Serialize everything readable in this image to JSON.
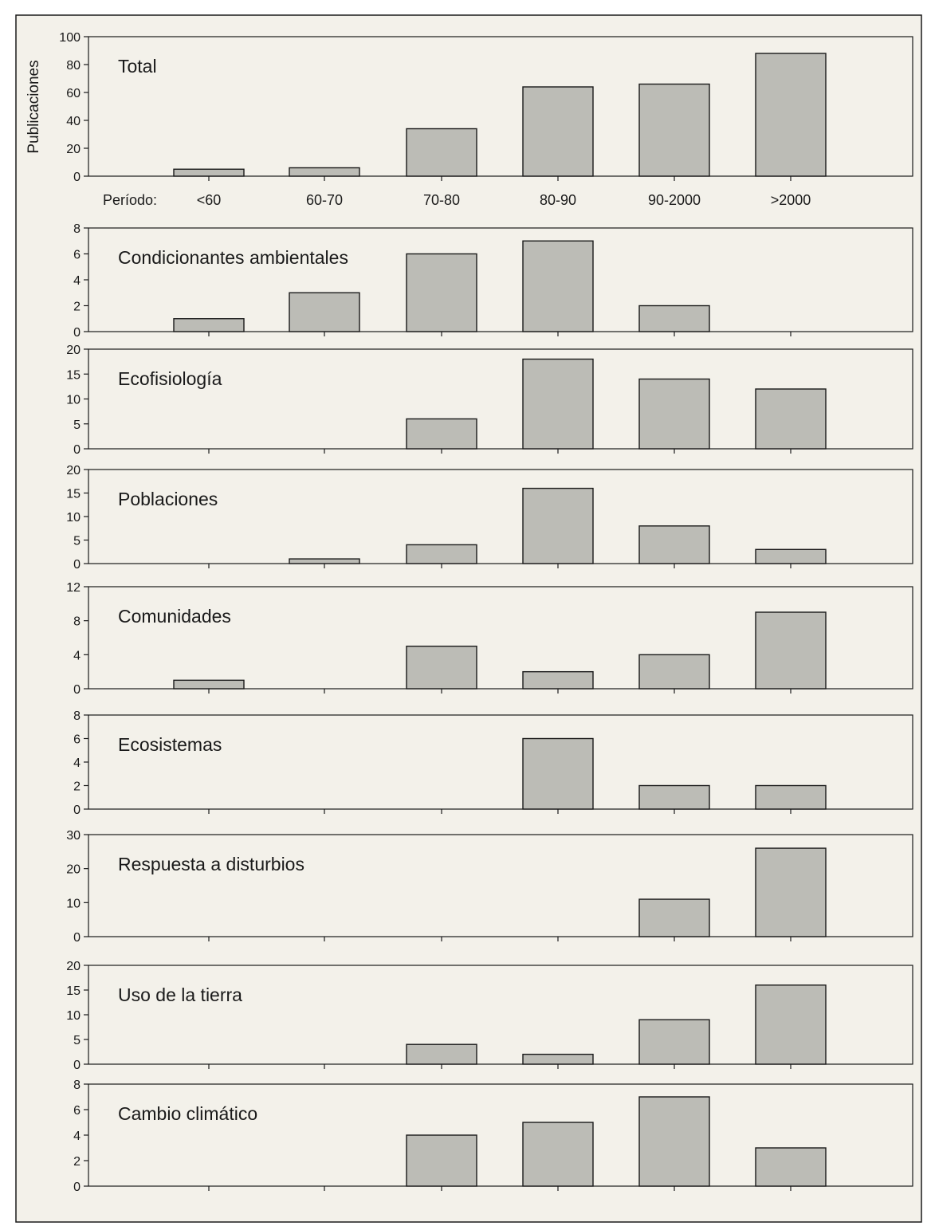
{
  "ylabel": "Publicaciones",
  "period_prefix": "Período:",
  "colors": {
    "background": "#f3f1ea",
    "bar_fill": "#bcbcb6",
    "stroke": "#1a1a1a"
  },
  "chart_data": [
    {
      "type": "bar",
      "title": "Total",
      "categories": [
        "<60",
        "60-70",
        "70-80",
        "80-90",
        "90-2000",
        ">2000"
      ],
      "values": [
        5,
        6,
        34,
        64,
        66,
        88
      ],
      "ylim": [
        0,
        100
      ],
      "yticks": [
        0,
        20,
        40,
        60,
        80,
        100
      ]
    },
    {
      "type": "bar",
      "title": "Condicionantes ambientales",
      "categories": [
        "<60",
        "60-70",
        "70-80",
        "80-90",
        "90-2000",
        ">2000"
      ],
      "values": [
        1,
        3,
        6,
        7,
        2,
        0
      ],
      "ylim": [
        0,
        8
      ],
      "yticks": [
        0,
        2,
        4,
        6,
        8
      ]
    },
    {
      "type": "bar",
      "title": "Ecofisiología",
      "categories": [
        "<60",
        "60-70",
        "70-80",
        "80-90",
        "90-2000",
        ">2000"
      ],
      "values": [
        0,
        0,
        6,
        18,
        14,
        12
      ],
      "ylim": [
        0,
        20
      ],
      "yticks": [
        0,
        5,
        10,
        15,
        20
      ]
    },
    {
      "type": "bar",
      "title": "Poblaciones",
      "categories": [
        "<60",
        "60-70",
        "70-80",
        "80-90",
        "90-2000",
        ">2000"
      ],
      "values": [
        0,
        1,
        4,
        16,
        8,
        3
      ],
      "ylim": [
        0,
        20
      ],
      "yticks": [
        0,
        5,
        10,
        15,
        20
      ]
    },
    {
      "type": "bar",
      "title": "Comunidades",
      "categories": [
        "<60",
        "60-70",
        "70-80",
        "80-90",
        "90-2000",
        ">2000"
      ],
      "values": [
        1,
        0,
        5,
        2,
        4,
        9
      ],
      "ylim": [
        0,
        12
      ],
      "yticks": [
        0,
        4,
        8,
        12
      ]
    },
    {
      "type": "bar",
      "title": "Ecosistemas",
      "categories": [
        "<60",
        "60-70",
        "70-80",
        "80-90",
        "90-2000",
        ">2000"
      ],
      "values": [
        0,
        0,
        0,
        6,
        2,
        2
      ],
      "ylim": [
        0,
        8
      ],
      "yticks": [
        0,
        2,
        4,
        6,
        8
      ]
    },
    {
      "type": "bar",
      "title": "Respuesta a disturbios",
      "categories": [
        "<60",
        "60-70",
        "70-80",
        "80-90",
        "90-2000",
        ">2000"
      ],
      "values": [
        0,
        0,
        0,
        0,
        11,
        26
      ],
      "ylim": [
        0,
        30
      ],
      "yticks": [
        0,
        10,
        20,
        30
      ]
    },
    {
      "type": "bar",
      "title": "Uso de la tierra",
      "categories": [
        "<60",
        "60-70",
        "70-80",
        "80-90",
        "90-2000",
        ">2000"
      ],
      "values": [
        0,
        0,
        4,
        2,
        9,
        16
      ],
      "ylim": [
        0,
        20
      ],
      "yticks": [
        0,
        5,
        10,
        15,
        20
      ]
    },
    {
      "type": "bar",
      "title": "Cambio climático",
      "categories": [
        "<60",
        "60-70",
        "70-80",
        "80-90",
        "90-2000",
        ">2000"
      ],
      "values": [
        0,
        0,
        4,
        5,
        7,
        3
      ],
      "ylim": [
        0,
        8
      ],
      "yticks": [
        0,
        2,
        4,
        6,
        8
      ]
    }
  ]
}
